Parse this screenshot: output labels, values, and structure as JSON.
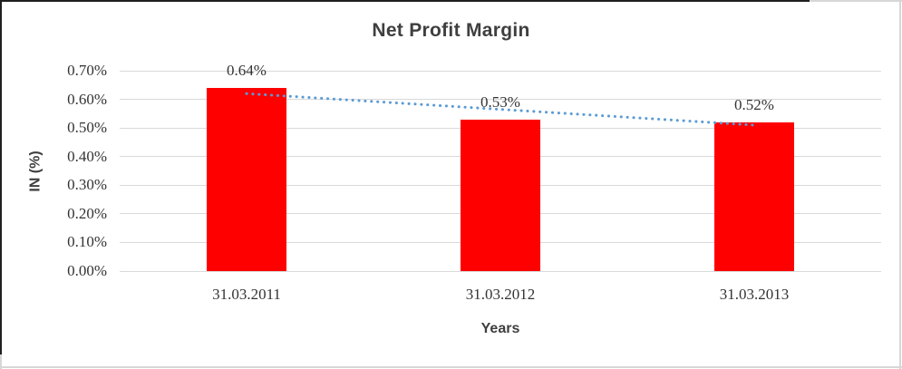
{
  "frame": {
    "background": "#ffffff",
    "outer_border_color": "#d7d7d7",
    "accent_border_color": "#1f1f1f"
  },
  "chart_data": {
    "type": "bar",
    "title": "Net Profit Margin",
    "xlabel": "Years",
    "ylabel": "IN (%)",
    "categories": [
      "31.03.2011",
      "31.03.2012",
      "31.03.2013"
    ],
    "values": [
      0.64,
      0.53,
      0.52
    ],
    "value_labels": [
      "0.64%",
      "0.53%",
      "0.52%"
    ],
    "y_ticks": [
      "0.70%",
      "0.60%",
      "0.50%",
      "0.40%",
      "0.30%",
      "0.20%",
      "0.10%",
      "0.00%"
    ],
    "ylim": [
      0,
      0.7
    ],
    "grid": true,
    "legend": "none",
    "bar_color": "#ff0000",
    "gridline_color": "#d9d9d9",
    "title_color": "#3f3f3f",
    "text_color": "#333333",
    "trendline": {
      "type": "linear",
      "style": "dotted",
      "color": "#5b9bd5",
      "start_value": 0.62,
      "end_value": 0.51
    }
  }
}
